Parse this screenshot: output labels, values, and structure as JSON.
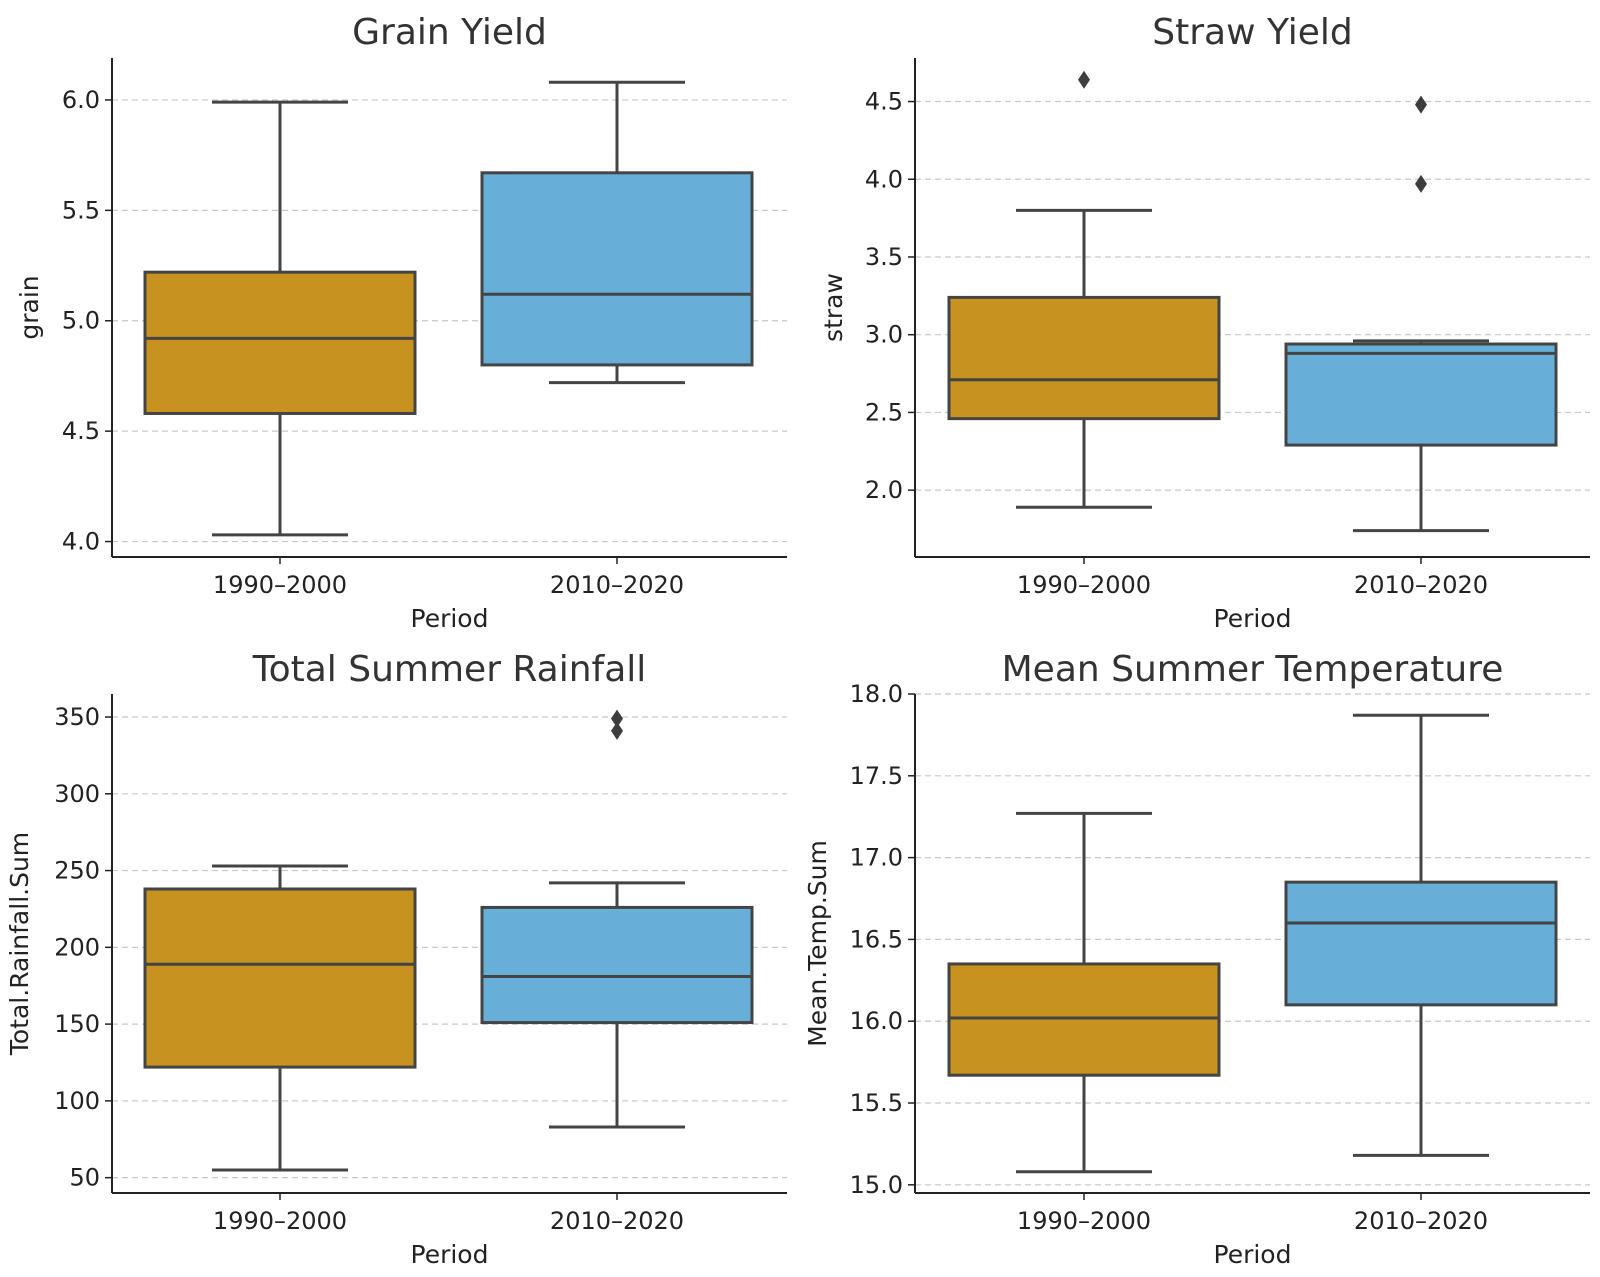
{
  "chart_data": [
    {
      "type": "box",
      "title": "Grain Yield",
      "xlabel": "Period",
      "ylabel": "grain",
      "categories": [
        "1990–2000",
        "2010–2020"
      ],
      "ylim": [
        3.93,
        6.19
      ],
      "yticks": [
        4.0,
        4.5,
        5.0,
        5.5,
        6.0
      ],
      "ytick_labels": [
        "4.0",
        "4.5",
        "5.0",
        "5.5",
        "6.0"
      ],
      "grid": true,
      "boxes": [
        {
          "category": "1990–2000",
          "whisker_low": 4.03,
          "q1": 4.58,
          "median": 4.92,
          "q3": 5.22,
          "whisker_high": 5.99,
          "outliers": []
        },
        {
          "category": "2010–2020",
          "whisker_low": 4.72,
          "q1": 4.8,
          "median": 5.12,
          "q3": 5.67,
          "whisker_high": 6.08,
          "outliers": []
        }
      ]
    },
    {
      "type": "box",
      "title": "Straw Yield",
      "xlabel": "Period",
      "ylabel": "straw",
      "categories": [
        "1990–2000",
        "2010–2020"
      ],
      "ylim": [
        1.57,
        4.78
      ],
      "yticks": [
        2.0,
        2.5,
        3.0,
        3.5,
        4.0,
        4.5
      ],
      "ytick_labels": [
        "2.0",
        "2.5",
        "3.0",
        "3.5",
        "4.0",
        "4.5"
      ],
      "grid": true,
      "boxes": [
        {
          "category": "1990–2000",
          "whisker_low": 1.89,
          "q1": 2.46,
          "median": 2.71,
          "q3": 3.24,
          "whisker_high": 3.8,
          "outliers": [
            4.64
          ]
        },
        {
          "category": "2010–2020",
          "whisker_low": 1.74,
          "q1": 2.29,
          "median": 2.88,
          "q3": 2.94,
          "whisker_high": 2.96,
          "outliers": [
            3.97,
            4.48
          ]
        }
      ]
    },
    {
      "type": "box",
      "title": "Total Summer Rainfall",
      "xlabel": "Period",
      "ylabel": "Total.Rainfall.Sum",
      "categories": [
        "1990–2000",
        "2010–2020"
      ],
      "ylim": [
        40,
        365
      ],
      "yticks": [
        50,
        100,
        150,
        200,
        250,
        300,
        350
      ],
      "ytick_labels": [
        "50",
        "100",
        "150",
        "200",
        "250",
        "300",
        "350"
      ],
      "grid": true,
      "boxes": [
        {
          "category": "1990–2000",
          "whisker_low": 55,
          "q1": 122,
          "median": 189,
          "q3": 238,
          "whisker_high": 253,
          "outliers": []
        },
        {
          "category": "2010–2020",
          "whisker_low": 83,
          "q1": 151,
          "median": 181,
          "q3": 226,
          "whisker_high": 242,
          "outliers": [
            341,
            349
          ]
        }
      ]
    },
    {
      "type": "box",
      "title": "Mean Summer Temperature",
      "xlabel": "Period",
      "ylabel": "Mean.Temp.Sum",
      "categories": [
        "1990–2000",
        "2010–2020"
      ],
      "ylim": [
        14.95,
        18.0
      ],
      "yticks": [
        15.0,
        15.5,
        16.0,
        16.5,
        17.0,
        17.5,
        18.0
      ],
      "ytick_labels": [
        "15.0",
        "15.5",
        "16.0",
        "16.5",
        "17.0",
        "17.5",
        "18.0"
      ],
      "grid": true,
      "boxes": [
        {
          "category": "1990–2000",
          "whisker_low": 15.08,
          "q1": 15.67,
          "median": 16.02,
          "q3": 16.35,
          "whisker_high": 17.27,
          "outliers": []
        },
        {
          "category": "2010–2020",
          "whisker_low": 15.18,
          "q1": 16.1,
          "median": 16.6,
          "q3": 16.85,
          "whisker_high": 17.87,
          "outliers": []
        }
      ]
    }
  ],
  "colors": {
    "1990–2000": "#c7921f",
    "2010–2020": "#67afd8",
    "box_edge": "#444444",
    "grid": "#c8c8c8"
  }
}
